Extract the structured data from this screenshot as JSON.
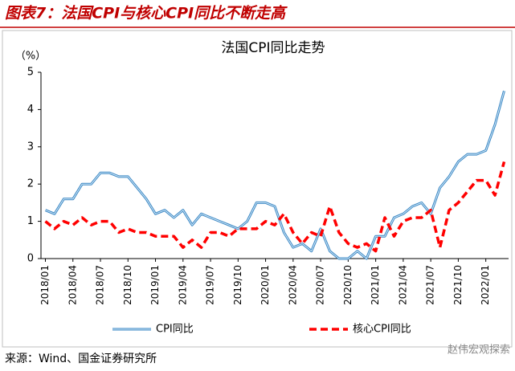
{
  "chart_data": {
    "type": "line",
    "header": "图表7：法国CPI与核心CPI同比不断走高",
    "title": "法国CPI同比走势",
    "y_unit": "（%）",
    "source": "来源：Wind、国金证券研究所",
    "watermark": "赵伟宏观探索",
    "categories": [
      "2018/01",
      null,
      null,
      "2018/04",
      null,
      null,
      "2018/07",
      null,
      null,
      "2018/10",
      null,
      null,
      "2019/01",
      null,
      null,
      "2019/04",
      null,
      null,
      "2019/07",
      null,
      null,
      "2019/10",
      null,
      null,
      "2020/01",
      null,
      null,
      "2020/04",
      null,
      null,
      "2020/07",
      null,
      null,
      "2020/10",
      null,
      null,
      "2021/01",
      null,
      null,
      "2021/04",
      null,
      null,
      "2021/07",
      null,
      null,
      "2021/10",
      null,
      null,
      "2022/01",
      null,
      null
    ],
    "series": [
      {
        "name": "CPI同比",
        "color": "#3a87c4",
        "dash": false,
        "values": [
          1.3,
          1.2,
          1.6,
          1.6,
          2.0,
          2.0,
          2.3,
          2.3,
          2.2,
          2.2,
          1.9,
          1.6,
          1.2,
          1.3,
          1.1,
          1.3,
          0.9,
          1.2,
          1.1,
          1.0,
          0.9,
          0.8,
          1.0,
          1.5,
          1.5,
          1.4,
          0.7,
          0.3,
          0.4,
          0.2,
          0.8,
          0.2,
          0.0,
          0.0,
          0.2,
          0.0,
          0.6,
          0.6,
          1.1,
          1.2,
          1.4,
          1.5,
          1.2,
          1.9,
          2.2,
          2.6,
          2.8,
          2.8,
          2.9,
          3.6,
          4.5
        ]
      },
      {
        "name": "核心CPI同比",
        "color": "#ff0000",
        "dash": true,
        "values": [
          1.0,
          0.8,
          1.0,
          0.9,
          1.1,
          0.9,
          1.0,
          1.0,
          0.7,
          0.8,
          0.7,
          0.7,
          0.6,
          0.6,
          0.6,
          0.3,
          0.5,
          0.3,
          0.7,
          0.7,
          0.6,
          0.8,
          0.8,
          0.8,
          1.0,
          0.9,
          1.2,
          0.7,
          0.4,
          0.7,
          0.6,
          1.4,
          0.7,
          0.4,
          0.3,
          0.4,
          0.2,
          1.1,
          0.6,
          1.0,
          1.1,
          1.1,
          1.3,
          0.3,
          1.3,
          1.5,
          1.8,
          2.1,
          2.1,
          1.7,
          2.6
        ]
      }
    ],
    "ylim": [
      0,
      5
    ],
    "yticks": [
      0,
      1,
      2,
      3,
      4,
      5
    ],
    "grid": false
  }
}
